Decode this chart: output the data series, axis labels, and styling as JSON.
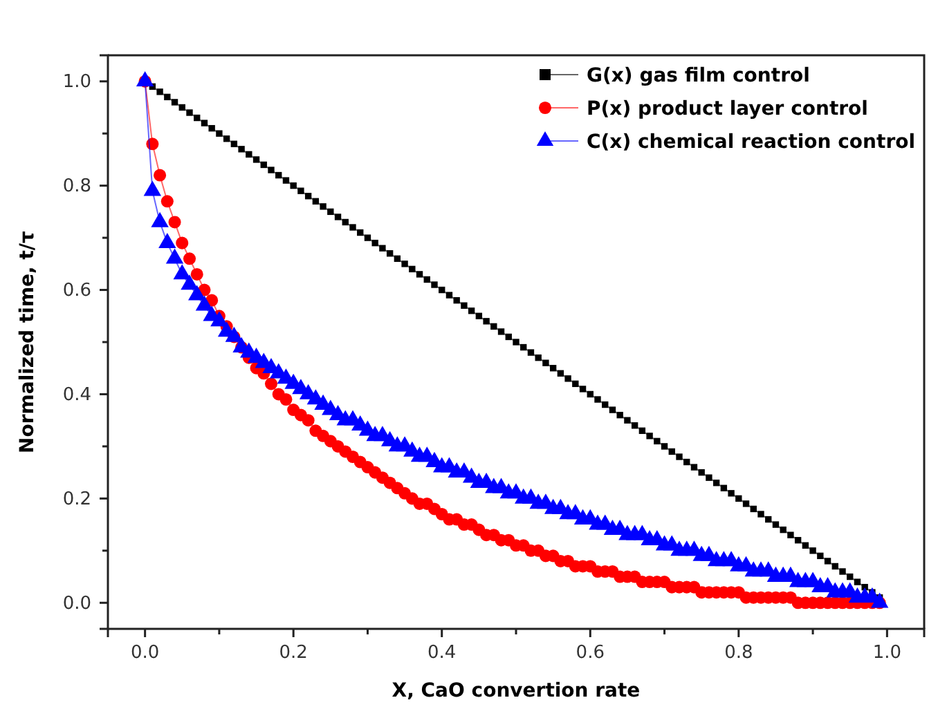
{
  "chart_data": {
    "type": "line",
    "xlabel": "X, CaO convertion rate",
    "ylabel": "Normalized time, t/τ",
    "x": [
      0,
      0.01,
      0.02,
      0.03,
      0.04,
      0.05,
      0.06,
      0.07,
      0.08,
      0.09,
      0.1,
      0.11,
      0.12,
      0.13,
      0.14,
      0.15,
      0.16,
      0.17,
      0.18,
      0.19,
      0.2,
      0.21,
      0.22,
      0.23,
      0.24,
      0.25,
      0.26,
      0.27,
      0.28,
      0.29,
      0.3,
      0.31,
      0.32,
      0.33,
      0.34,
      0.35,
      0.36,
      0.37,
      0.38,
      0.39,
      0.4,
      0.41,
      0.42,
      0.43,
      0.44,
      0.45,
      0.46,
      0.47,
      0.48,
      0.49,
      0.5,
      0.51,
      0.52,
      0.53,
      0.54,
      0.55,
      0.56,
      0.57,
      0.58,
      0.59,
      0.6,
      0.61,
      0.62,
      0.63,
      0.64,
      0.65,
      0.66,
      0.67,
      0.68,
      0.69,
      0.7,
      0.71,
      0.72,
      0.73,
      0.74,
      0.75,
      0.76,
      0.77,
      0.78,
      0.79,
      0.8,
      0.81,
      0.82,
      0.83,
      0.84,
      0.85,
      0.86,
      0.87,
      0.88,
      0.89,
      0.9,
      0.91,
      0.92,
      0.93,
      0.94,
      0.95,
      0.96,
      0.97,
      0.98,
      0.99
    ],
    "series": [
      {
        "name": "G(x) gas film control",
        "color": "#000000",
        "marker": "square",
        "values": [
          1,
          0.99,
          0.98,
          0.97,
          0.96,
          0.95,
          0.94,
          0.93,
          0.92,
          0.91,
          0.9,
          0.89,
          0.88,
          0.87,
          0.86,
          0.85,
          0.84,
          0.83,
          0.82,
          0.81,
          0.8,
          0.79,
          0.78,
          0.77,
          0.76,
          0.75,
          0.74,
          0.73,
          0.72,
          0.71,
          0.7,
          0.69,
          0.68,
          0.67,
          0.66,
          0.65,
          0.64,
          0.63,
          0.62,
          0.61,
          0.6,
          0.59,
          0.58,
          0.57,
          0.56,
          0.55,
          0.54,
          0.53,
          0.52,
          0.51,
          0.5,
          0.49,
          0.48,
          0.47,
          0.46,
          0.45,
          0.44,
          0.43,
          0.42,
          0.41,
          0.4,
          0.39,
          0.38,
          0.37,
          0.36,
          0.35,
          0.34,
          0.33,
          0.32,
          0.31,
          0.3,
          0.29,
          0.28,
          0.27,
          0.26,
          0.25,
          0.24,
          0.23,
          0.22,
          0.21,
          0.2,
          0.19,
          0.18,
          0.17,
          0.16,
          0.15,
          0.14,
          0.13,
          0.12,
          0.11,
          0.1,
          0.09,
          0.08,
          0.07,
          0.06,
          0.05,
          0.04,
          0.03,
          0.02,
          0.01
        ]
      },
      {
        "name": "P(x) product layer control",
        "color": "#ff0000",
        "marker": "circle",
        "values": [
          1,
          0.88,
          0.82,
          0.77,
          0.73,
          0.69,
          0.66,
          0.63,
          0.6,
          0.58,
          0.55,
          0.53,
          0.51,
          0.49,
          0.47,
          0.45,
          0.44,
          0.42,
          0.4,
          0.39,
          0.37,
          0.36,
          0.35,
          0.33,
          0.32,
          0.31,
          0.3,
          0.29,
          0.28,
          0.27,
          0.26,
          0.25,
          0.24,
          0.23,
          0.22,
          0.21,
          0.2,
          0.19,
          0.19,
          0.18,
          0.17,
          0.16,
          0.16,
          0.15,
          0.15,
          0.14,
          0.13,
          0.13,
          0.12,
          0.12,
          0.11,
          0.11,
          0.1,
          0.1,
          0.09,
          0.09,
          0.08,
          0.08,
          0.07,
          0.07,
          0.07,
          0.06,
          0.06,
          0.06,
          0.05,
          0.05,
          0.05,
          0.04,
          0.04,
          0.04,
          0.04,
          0.03,
          0.03,
          0.03,
          0.03,
          0.02,
          0.02,
          0.02,
          0.02,
          0.02,
          0.02,
          0.01,
          0.01,
          0.01,
          0.01,
          0.01,
          0.01,
          0.01,
          0,
          0,
          0,
          0,
          0,
          0,
          0,
          0,
          0,
          0,
          0,
          0
        ]
      },
      {
        "name": "C(x) chemical reaction control",
        "color": "#0000ff",
        "marker": "triangle",
        "values": [
          1,
          0.79,
          0.73,
          0.69,
          0.66,
          0.63,
          0.61,
          0.59,
          0.57,
          0.55,
          0.54,
          0.52,
          0.51,
          0.49,
          0.48,
          0.47,
          0.46,
          0.45,
          0.44,
          0.43,
          0.42,
          0.41,
          0.4,
          0.39,
          0.38,
          0.37,
          0.36,
          0.35,
          0.35,
          0.34,
          0.33,
          0.32,
          0.32,
          0.31,
          0.3,
          0.3,
          0.29,
          0.28,
          0.28,
          0.27,
          0.26,
          0.26,
          0.25,
          0.25,
          0.24,
          0.23,
          0.23,
          0.22,
          0.22,
          0.21,
          0.21,
          0.2,
          0.2,
          0.19,
          0.19,
          0.18,
          0.18,
          0.17,
          0.17,
          0.16,
          0.16,
          0.15,
          0.15,
          0.14,
          0.14,
          0.13,
          0.13,
          0.13,
          0.12,
          0.12,
          0.11,
          0.11,
          0.1,
          0.1,
          0.1,
          0.09,
          0.09,
          0.08,
          0.08,
          0.08,
          0.07,
          0.07,
          0.06,
          0.06,
          0.06,
          0.05,
          0.05,
          0.05,
          0.04,
          0.04,
          0.04,
          0.03,
          0.03,
          0.02,
          0.02,
          0.02,
          0.01,
          0.01,
          0.01,
          0
        ]
      }
    ],
    "xlim": [
      -0.05,
      1.05
    ],
    "ylim": [
      -0.05,
      1.05
    ],
    "xticks": [
      {
        "value": 0,
        "label": "0.0"
      },
      {
        "value": 0.1,
        "label": null
      },
      {
        "value": 0.2,
        "label": "0.2"
      },
      {
        "value": 0.3,
        "label": null
      },
      {
        "value": 0.4,
        "label": "0.4"
      },
      {
        "value": 0.5,
        "label": null
      },
      {
        "value": 0.6,
        "label": "0.6"
      },
      {
        "value": 0.7,
        "label": null
      },
      {
        "value": 0.8,
        "label": "0.8"
      },
      {
        "value": 0.9,
        "label": null
      },
      {
        "value": 1,
        "label": "1.0"
      }
    ],
    "yticks": [
      {
        "value": 0,
        "label": "0.0"
      },
      {
        "value": 0.1,
        "label": null
      },
      {
        "value": 0.2,
        "label": "0.2"
      },
      {
        "value": 0.3,
        "label": null
      },
      {
        "value": 0.4,
        "label": "0.4"
      },
      {
        "value": 0.5,
        "label": null
      },
      {
        "value": 0.6,
        "label": "0.6"
      },
      {
        "value": 0.7,
        "label": null
      },
      {
        "value": 0.8,
        "label": "0.8"
      },
      {
        "value": 0.9,
        "label": null
      },
      {
        "value": 1,
        "label": "1.0"
      }
    ],
    "grid": false,
    "legend": "top right",
    "line_style": "solid"
  }
}
